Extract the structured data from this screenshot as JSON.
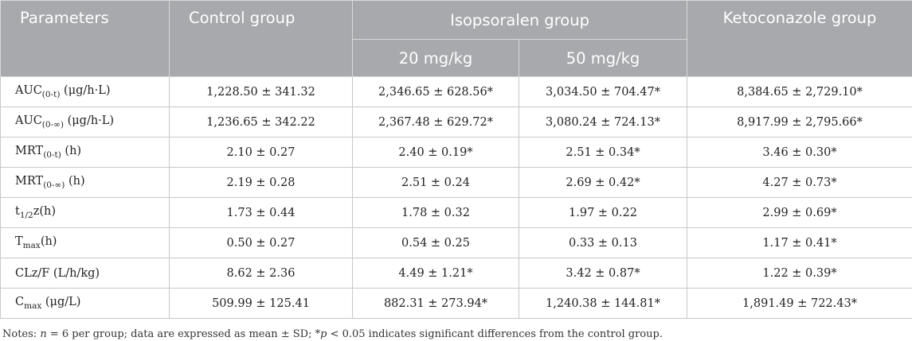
{
  "header": {
    "parameters": "Parameters",
    "control": "Control group",
    "isopsoralen": "Isopsoralen group",
    "ketoconazole": "Ketoconazole group",
    "dose_20": "20 mg/kg",
    "dose_50": "50 mg/kg"
  },
  "rows": [
    {
      "base": "AUC",
      "sub": "(0-t)",
      "suffix": " (μg/h·L)",
      "control": "1,228.50 ± 341.32",
      "d20": "2,346.65 ± 628.56*",
      "d50": "3,034.50 ± 704.47*",
      "keto": "8,384.65 ± 2,729.10*"
    },
    {
      "base": "AUC",
      "sub": "(0-∞)",
      "suffix": " (μg/h·L)",
      "control": "1,236.65 ± 342.22",
      "d20": "2,367.48 ± 629.72*",
      "d50": "3,080.24 ± 724.13*",
      "keto": "8,917.99 ± 2,795.66*"
    },
    {
      "base": "MRT",
      "sub": "(0-t)",
      "suffix": " (h)",
      "control": "2.10 ± 0.27",
      "d20": "2.40 ± 0.19*",
      "d50": "2.51 ± 0.34*",
      "keto": "3.46 ± 0.30*"
    },
    {
      "base": "MRT",
      "sub": "(0-∞)",
      "suffix": " (h)",
      "control": "2.19 ± 0.28",
      "d20": "2.51 ± 0.24",
      "d50": "2.69 ± 0.42*",
      "keto": "4.27 ± 0.73*"
    },
    {
      "base": "t",
      "sub": "1/2",
      "suffix": "z(h)",
      "control": "1.73 ± 0.44",
      "d20": "1.78 ± 0.32",
      "d50": "1.97 ± 0.22",
      "keto": "2.99 ± 0.69*"
    },
    {
      "base": "T",
      "sub": "max",
      "suffix": "(h)",
      "control": "0.50 ± 0.27",
      "d20": "0.54 ± 0.25",
      "d50": "0.33 ± 0.13",
      "keto": "1.17 ± 0.41*"
    },
    {
      "base": "CLz/F",
      "sub": "",
      "suffix": " (L/h/kg)",
      "control": "8.62 ± 2.36",
      "d20": "4.49 ± 1.21*",
      "d50": "3.42 ± 0.87*",
      "keto": "1.22 ± 0.39*"
    },
    {
      "base": "C",
      "sub": "max",
      "suffix": " (μg/L)",
      "control": "509.99 ± 125.41",
      "d20": "882.31 ± 273.94*",
      "d50": "1,240.38 ± 144.81*",
      "keto": "1,891.49 ± 722.43*"
    }
  ],
  "notes": {
    "prefix": "Notes: ",
    "n": "n",
    "n_text": " = 6 per group; data are expressed as mean ± SD; *",
    "p": "p",
    "p_text": " < 0.05 indicates significant differences from the control group."
  }
}
